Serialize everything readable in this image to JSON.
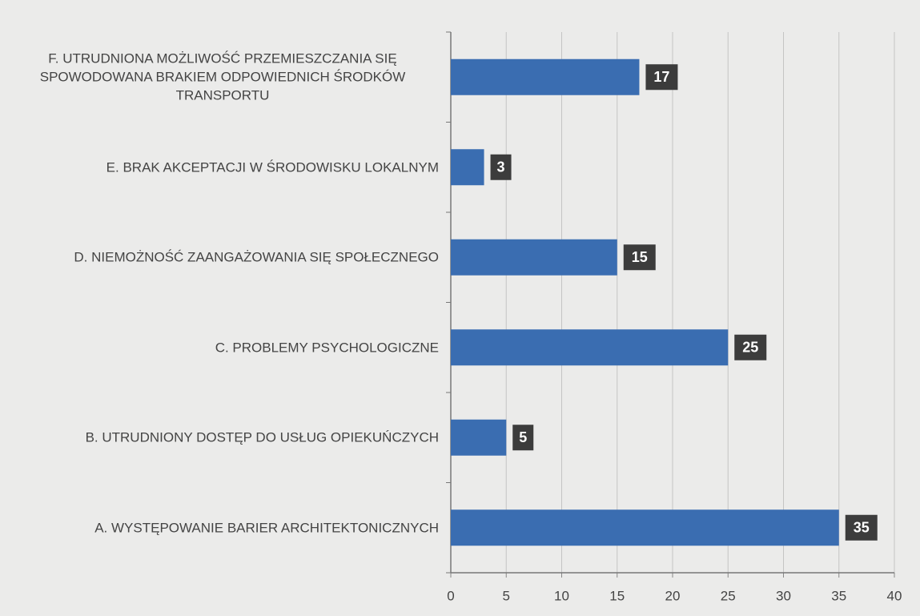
{
  "chart_data": {
    "type": "bar",
    "orientation": "horizontal",
    "categories": [
      "A. WYSTĘPOWANIE BARIER ARCHITEKTONICZNYCH",
      "B. UTRUDNIONY DOSTĘP DO USŁUG OPIEKUŃCZYCH",
      "C. PROBLEMY PSYCHOLOGICZNE",
      "D. NIEMOŻNOŚĆ ZAANGAŻOWANIA SIĘ SPOŁECZNEGO",
      "E. BRAK AKCEPTACJI W ŚRODOWISKU LOKALNYM",
      "F. UTRUDNIONA MOŻLIWOŚĆ PRZEMIESZCZANIA SIĘ SPOWODOWANA BRAKIEM ODPOWIEDNICH ŚRODKÓW TRANSPORTU"
    ],
    "values": [
      35,
      5,
      25,
      15,
      3,
      17
    ],
    "color": "#3a6db1",
    "xlim": [
      0,
      40
    ],
    "xticks": [
      0,
      5,
      10,
      15,
      20,
      25,
      30,
      35,
      40
    ],
    "grid": true
  }
}
